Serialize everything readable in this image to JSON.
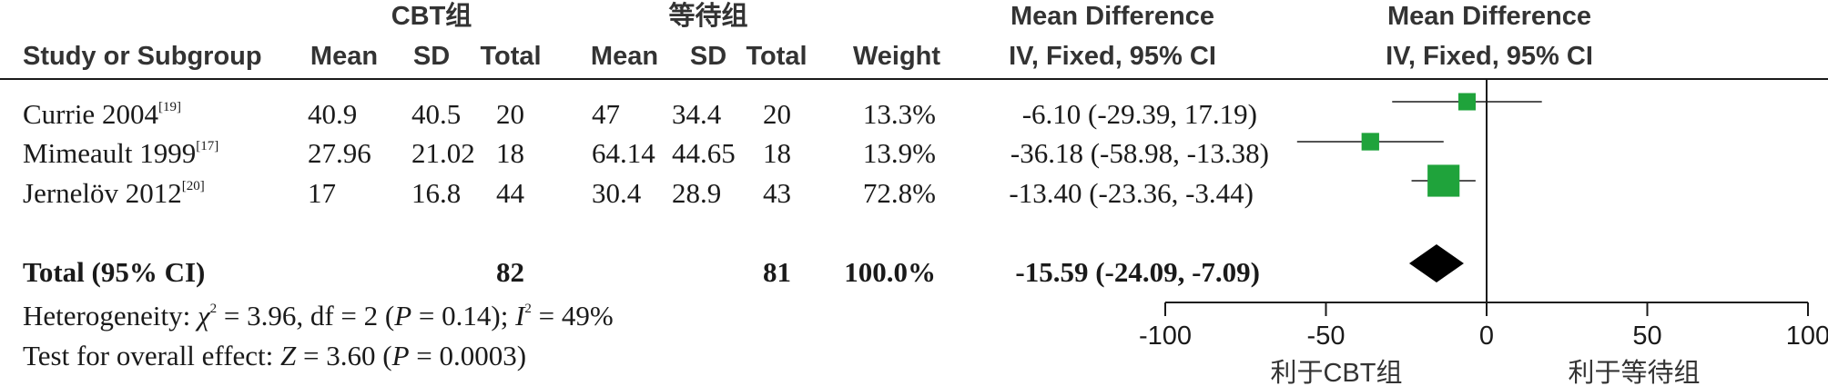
{
  "header": {
    "group1": "CBT组",
    "group2": "等待组",
    "md_col_title": "Mean Difference",
    "md_col_sub": "IV, Fixed, 95% CI",
    "plot_title": "Mean Difference",
    "plot_sub": "IV, Fixed, 95% CI",
    "study_col": "Study or Subgroup",
    "mean1": "Mean",
    "sd1": "SD",
    "total1": "Total",
    "mean2": "Mean",
    "sd2": "SD",
    "total2": "Total",
    "weight": "Weight"
  },
  "studies": [
    {
      "name": "Currie 2004",
      "ref": "[19]",
      "mean1": "40.9",
      "sd1": "40.5",
      "n1": "20",
      "mean2": "47",
      "sd2": "34.4",
      "n2": "20",
      "weight": "13.3%",
      "ci": "-6.10 (-29.39, 17.19)"
    },
    {
      "name": "Mimeault 1999",
      "ref": "[17]",
      "mean1": "27.96",
      "sd1": "21.02",
      "n1": "18",
      "mean2": "64.14",
      "sd2": "44.65",
      "n2": "18",
      "weight": "13.9%",
      "ci": "-36.18 (-58.98, -13.38)"
    },
    {
      "name": "Jernelöv 2012",
      "ref": "[20]",
      "mean1": "17",
      "sd1": "16.8",
      "n1": "44",
      "mean2": "30.4",
      "sd2": "28.9",
      "n2": "43",
      "weight": "72.8%",
      "ci": "-13.40 (-23.36, -3.44)"
    }
  ],
  "total": {
    "label": "Total (95% CI)",
    "n1": "82",
    "n2": "81",
    "weight": "100.0%",
    "ci_est": "-15.59",
    "ci_range": "(-24.09, -7.09)"
  },
  "footer": {
    "het_prefix": "Heterogeneity: ",
    "chi": "χ",
    "het_mid": " = 3.96, df = 2 (",
    "P": "P",
    "het_p": " = 0.14); ",
    "I": "I",
    "het_end": " = 49%",
    "sq": "2",
    "oe_prefix": "Test for overall effect: ",
    "Z": "Z",
    "oe_mid": " = 3.60 (",
    "oe_end": " = 0.0003)"
  },
  "axis": {
    "favours_left": "利于CBT组",
    "favours_right": "利于等待组"
  },
  "chart_data": {
    "type": "forest",
    "xlim": [
      -100,
      100
    ],
    "xticks": [
      -100,
      -50,
      0,
      50,
      100
    ],
    "xtick_labels": [
      "-100",
      "-50",
      "0",
      "50",
      "100"
    ],
    "estimates": [
      {
        "est": -6.1,
        "lo": -29.39,
        "hi": 17.19,
        "weight": 13.3
      },
      {
        "est": -36.18,
        "lo": -58.98,
        "hi": -13.38,
        "weight": 13.9
      },
      {
        "est": -13.4,
        "lo": -23.36,
        "hi": -3.44,
        "weight": 72.8
      }
    ],
    "pooled": {
      "est": -15.59,
      "lo": -24.09,
      "hi": -7.09
    },
    "marker_color": "#1fa33b"
  }
}
